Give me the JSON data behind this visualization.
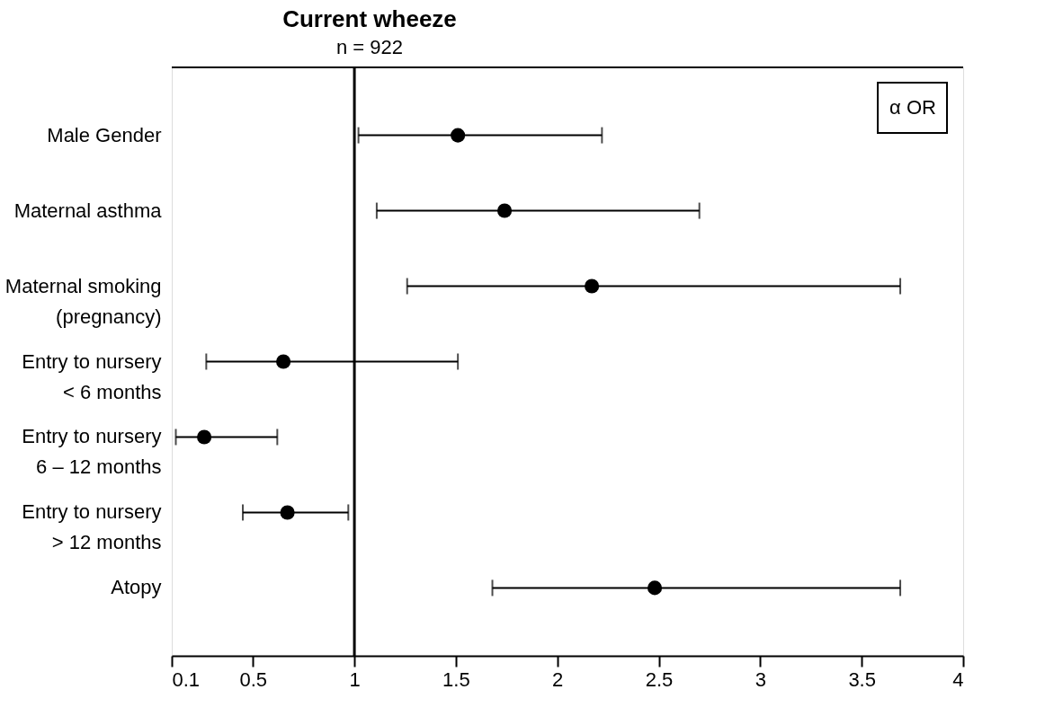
{
  "chart_data": {
    "type": "scatter",
    "orientation": "horizontal",
    "title": "Current wheeze",
    "subtitle": "n = 922",
    "categories": [
      "Male Gender",
      "Maternal asthma",
      "Maternal smoking\n(pregnancy)",
      "Entry to nursery\n< 6 months",
      "Entry to nursery\n6 – 12 months",
      "Entry to nursery\n> 12 months",
      "Atopy"
    ],
    "values": [
      1.51,
      1.74,
      2.17,
      0.65,
      0.26,
      0.67,
      2.48
    ],
    "errors": [
      [
        1.02,
        2.22
      ],
      [
        1.11,
        2.7
      ],
      [
        1.26,
        3.69
      ],
      [
        0.27,
        1.51
      ],
      [
        0.12,
        0.62
      ],
      [
        0.45,
        0.97
      ],
      [
        1.68,
        3.69
      ]
    ],
    "color": "#000000",
    "marker": "circle",
    "grid": false,
    "xlim": [
      0.1,
      4
    ],
    "xticks": [
      0.1,
      0.5,
      1,
      1.5,
      2,
      2.5,
      3,
      3.5,
      4
    ],
    "ref_lines": [
      {
        "axis": "x",
        "value": 1,
        "color": "#000000"
      }
    ],
    "annotations": [
      "α OR"
    ]
  }
}
